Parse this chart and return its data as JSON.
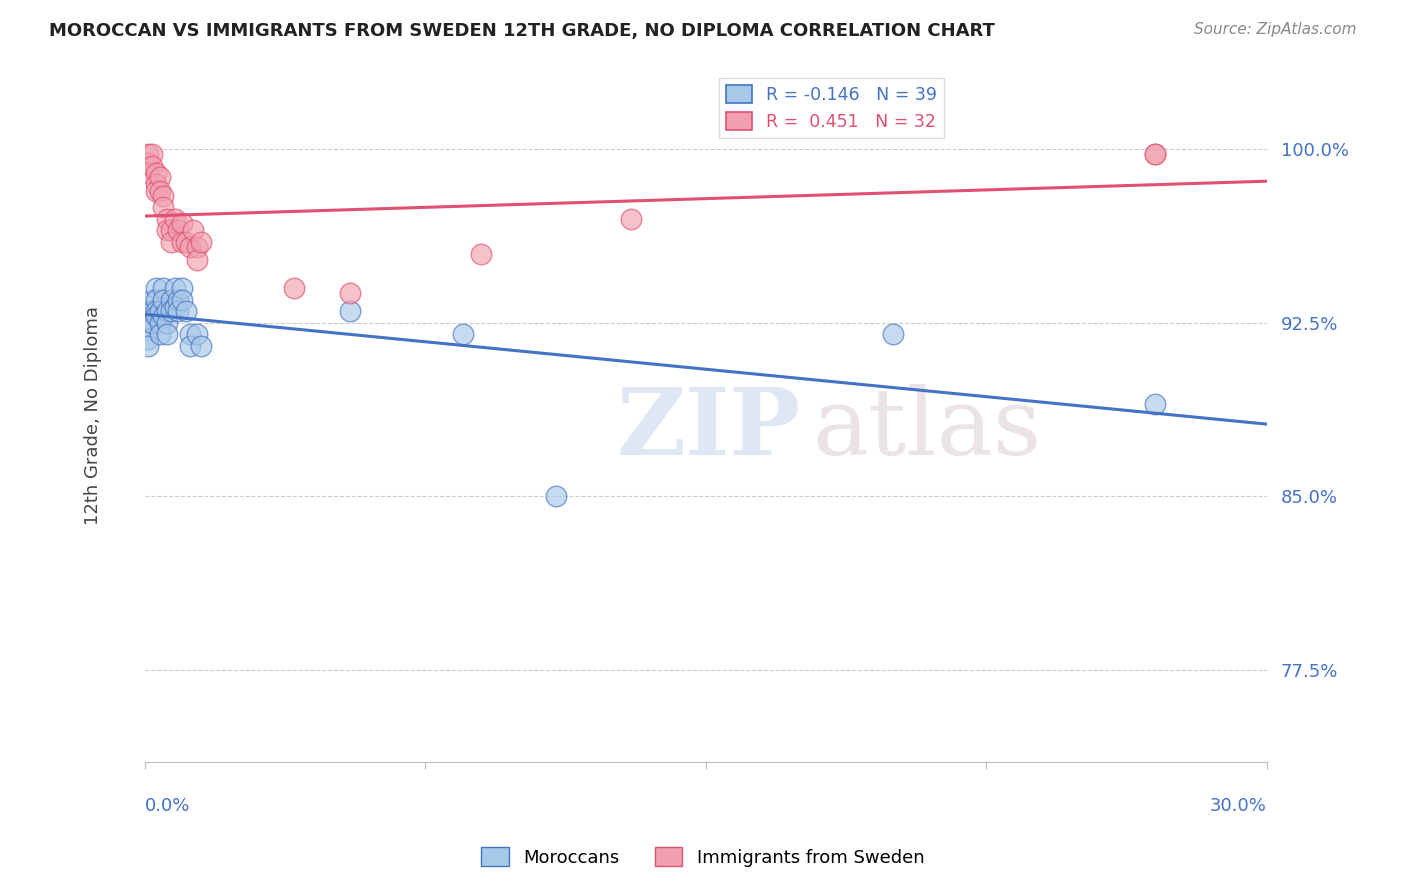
{
  "title": "MOROCCAN VS IMMIGRANTS FROM SWEDEN 12TH GRADE, NO DIPLOMA CORRELATION CHART",
  "source": "Source: ZipAtlas.com",
  "ylabel": "12th Grade, No Diploma",
  "ytick_labels": [
    "77.5%",
    "85.0%",
    "92.5%",
    "100.0%"
  ],
  "ytick_values": [
    0.775,
    0.85,
    0.925,
    1.0
  ],
  "xlim": [
    0.0,
    0.3
  ],
  "ylim": [
    0.735,
    1.035
  ],
  "blue_R": -0.146,
  "blue_N": 39,
  "pink_R": 0.451,
  "pink_N": 32,
  "blue_label": "Moroccans",
  "pink_label": "Immigrants from Sweden",
  "blue_color": "#a8c8e8",
  "pink_color": "#f0a0b0",
  "blue_line_color": "#4472c4",
  "pink_line_color": "#e05070",
  "watermark_zip": "ZIP",
  "watermark_atlas": "atlas",
  "blue_x": [
    0.001,
    0.001,
    0.001,
    0.001,
    0.001,
    0.002,
    0.002,
    0.002,
    0.003,
    0.003,
    0.003,
    0.003,
    0.004,
    0.004,
    0.004,
    0.005,
    0.005,
    0.005,
    0.006,
    0.006,
    0.006,
    0.007,
    0.007,
    0.008,
    0.008,
    0.009,
    0.009,
    0.01,
    0.01,
    0.011,
    0.012,
    0.012,
    0.014,
    0.015,
    0.055,
    0.085,
    0.11,
    0.2,
    0.27
  ],
  "blue_y": [
    0.93,
    0.926,
    0.922,
    0.918,
    0.915,
    0.935,
    0.93,
    0.925,
    0.94,
    0.935,
    0.93,
    0.928,
    0.93,
    0.925,
    0.92,
    0.94,
    0.935,
    0.928,
    0.93,
    0.925,
    0.92,
    0.935,
    0.93,
    0.94,
    0.932,
    0.935,
    0.93,
    0.94,
    0.935,
    0.93,
    0.92,
    0.915,
    0.92,
    0.915,
    0.93,
    0.92,
    0.85,
    0.92,
    0.89
  ],
  "pink_x": [
    0.001,
    0.001,
    0.001,
    0.002,
    0.002,
    0.003,
    0.003,
    0.003,
    0.004,
    0.004,
    0.005,
    0.005,
    0.006,
    0.006,
    0.007,
    0.007,
    0.008,
    0.009,
    0.01,
    0.01,
    0.011,
    0.012,
    0.013,
    0.014,
    0.014,
    0.015,
    0.04,
    0.055,
    0.09,
    0.13,
    0.27,
    0.27
  ],
  "pink_y": [
    0.998,
    0.994,
    0.99,
    0.998,
    0.993,
    0.99,
    0.985,
    0.982,
    0.988,
    0.982,
    0.98,
    0.975,
    0.97,
    0.965,
    0.965,
    0.96,
    0.97,
    0.965,
    0.968,
    0.96,
    0.96,
    0.958,
    0.965,
    0.958,
    0.952,
    0.96,
    0.94,
    0.938,
    0.955,
    0.97,
    0.998,
    0.998
  ]
}
